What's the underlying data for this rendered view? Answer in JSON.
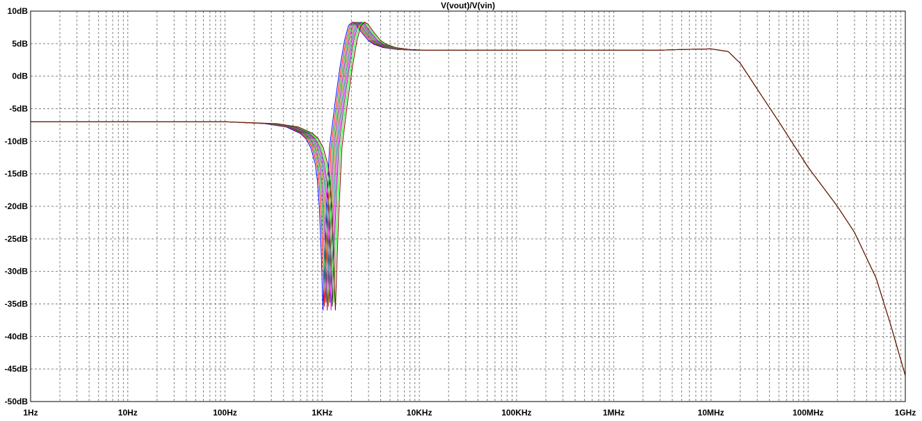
{
  "chart_data": {
    "type": "line",
    "title": "V(vout)/V(vin)",
    "xscale": "log",
    "xlim": [
      1,
      1000000000
    ],
    "ylim": [
      -50,
      10
    ],
    "grid": true,
    "xticks": [
      "1Hz",
      "10Hz",
      "100Hz",
      "1KHz",
      "10KHz",
      "100KHz",
      "1MHz",
      "10MHz",
      "100MHz",
      "1GHz"
    ],
    "yticks": [
      "10dB",
      "5dB",
      "0dB",
      "-5dB",
      "-10dB",
      "-15dB",
      "-20dB",
      "-25dB",
      "-30dB",
      "-35dB",
      "-40dB",
      "-45dB",
      "-50dB"
    ],
    "ytick_values": [
      10,
      5,
      0,
      -5,
      -10,
      -15,
      -20,
      -25,
      -30,
      -35,
      -40,
      -45,
      -50
    ],
    "series_colors": [
      "#0000ff",
      "#ff0000",
      "#00a000",
      "#a000a0",
      "#808000",
      "#008080",
      "#ff00ff",
      "#404040",
      "#00ff00",
      "#800000"
    ],
    "series_shifts": [
      0.85,
      0.88,
      0.91,
      0.94,
      0.97,
      1.0,
      1.03,
      1.06,
      1.1,
      1.14
    ],
    "series_x": [
      1,
      10,
      100,
      300,
      500,
      700,
      800,
      900,
      1000,
      1050,
      1100,
      1150,
      1200,
      1250,
      1300,
      1400,
      1600,
      1800,
      2000,
      2200,
      2400,
      2600,
      2800,
      3000,
      3500,
      4000,
      5000,
      7000,
      10000,
      20000,
      100000,
      1000000,
      3000000,
      5000000,
      10000000,
      15000000,
      20000000,
      30000000,
      50000000,
      100000000,
      200000000,
      300000000,
      500000000,
      700000000,
      1000000000
    ],
    "series_y": [
      -7,
      -7,
      -7,
      -7.3,
      -7.8,
      -8.8,
      -9.6,
      -11,
      -13.5,
      -16,
      -20,
      -27,
      -36,
      -28,
      -21,
      -11,
      -4,
      1.5,
      5.5,
      7.8,
      8.3,
      8.0,
      7.3,
      6.7,
      5.5,
      4.9,
      4.4,
      4.1,
      4.0,
      4.0,
      4.0,
      4.0,
      4.0,
      4.1,
      4.2,
      3.8,
      2.0,
      -2,
      -7,
      -14,
      -20,
      -24,
      -31,
      -38,
      -46
    ]
  }
}
